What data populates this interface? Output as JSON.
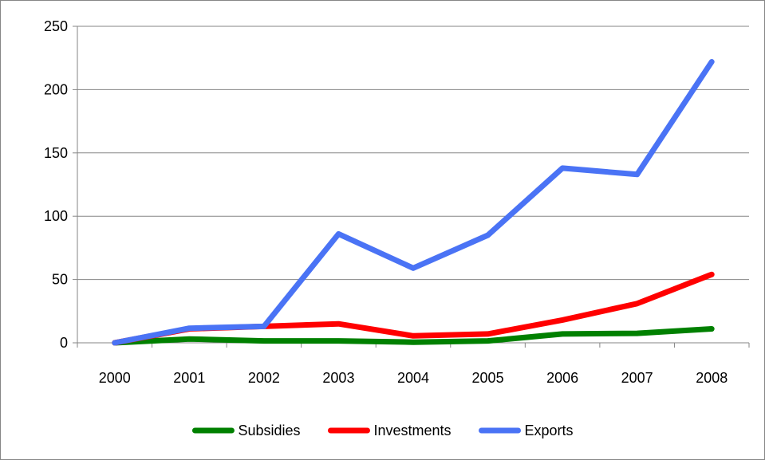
{
  "chart_data": {
    "type": "line",
    "title": "",
    "xlabel": "",
    "ylabel": "",
    "categories": [
      "2000",
      "2001",
      "2002",
      "2003",
      "2004",
      "2005",
      "2006",
      "2007",
      "2008"
    ],
    "ylim": [
      0,
      250
    ],
    "yticks": [
      0,
      50,
      100,
      150,
      200,
      250
    ],
    "grid": true,
    "legend_position": "bottom",
    "series": [
      {
        "name": "Subsidies",
        "color": "#008000",
        "values": [
          0,
          3,
          1.5,
          1.5,
          0.5,
          1.5,
          7,
          7.5,
          11
        ]
      },
      {
        "name": "Investments",
        "color": "#ff0000",
        "values": [
          0,
          11,
          13,
          15,
          5.5,
          7,
          18,
          31,
          54
        ]
      },
      {
        "name": "Exports",
        "color": "#4a73f5",
        "values": [
          0,
          11.5,
          13,
          86,
          59,
          85,
          138,
          133,
          222
        ]
      }
    ]
  }
}
